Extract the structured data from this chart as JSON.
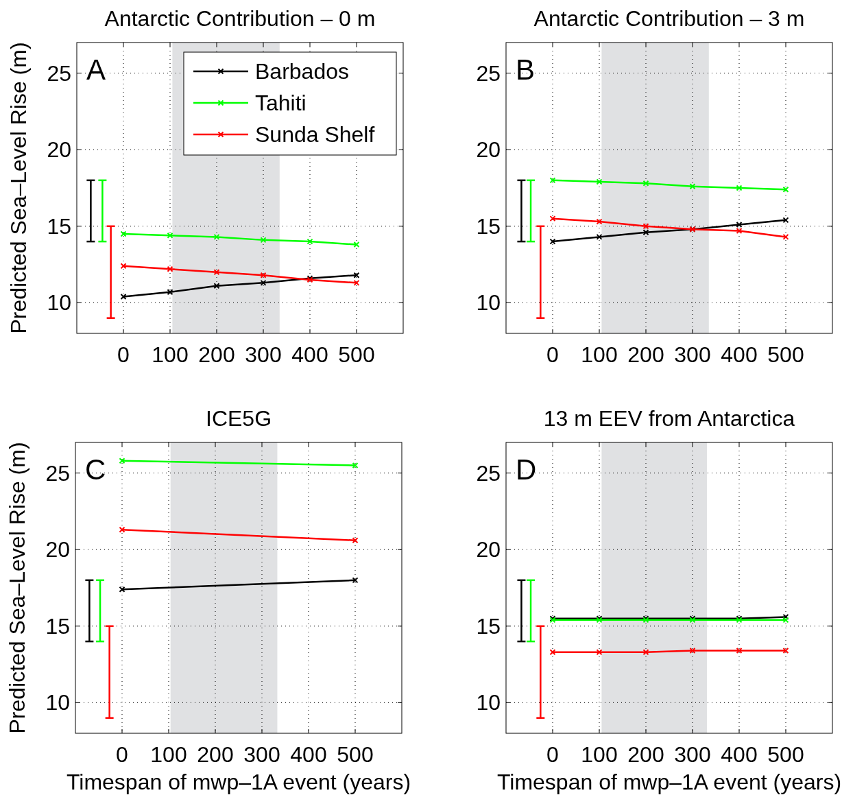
{
  "chart_data": [
    {
      "type": "line",
      "title": "Antarctic Contribution – 0 m",
      "ylabel": "Predicted Sea–Level Rise (m)",
      "annotations": [
        "A"
      ],
      "xlim": [
        -100,
        600
      ],
      "ylim": [
        8,
        27
      ],
      "xticks": [
        0,
        100,
        200,
        300,
        400,
        500
      ],
      "yticks": [
        10,
        15,
        20,
        25
      ],
      "grid": true,
      "legend": "top right",
      "marker": "cross",
      "line_style": "solid",
      "bands": [
        {
          "axis": "x",
          "from": 105,
          "to": 335,
          "color": "#e0e1e3"
        }
      ],
      "series": [
        {
          "name": "Barbados",
          "color": "#000000",
          "x": [
            0,
            100,
            200,
            300,
            400,
            500
          ],
          "values": [
            10.4,
            10.7,
            11.1,
            11.3,
            11.6,
            11.8
          ]
        },
        {
          "name": "Tahiti",
          "color": "#00ff00",
          "x": [
            0,
            100,
            200,
            300,
            400,
            500
          ],
          "values": [
            14.5,
            14.4,
            14.3,
            14.1,
            14.0,
            13.8
          ]
        },
        {
          "name": "Sunda Shelf",
          "color": "#ff0000",
          "x": [
            0,
            100,
            200,
            300,
            400,
            500
          ],
          "values": [
            12.4,
            12.2,
            12.0,
            11.8,
            11.5,
            11.3
          ]
        },
        {
          "marker": "none",
          "color": "#000000",
          "x": [
            -70,
            -70
          ],
          "values": [
            14,
            18
          ]
        },
        {
          "marker": "none",
          "color": "#00ff00",
          "x": [
            -45,
            -45
          ],
          "values": [
            14,
            18
          ]
        },
        {
          "marker": "none",
          "color": "#ff0000",
          "x": [
            -27,
            -27
          ],
          "values": [
            9,
            15
          ]
        }
      ]
    },
    {
      "type": "line",
      "title": "Antarctic Contribution – 3 m",
      "annotations": [
        "B"
      ],
      "xlim": [
        -100,
        600
      ],
      "ylim": [
        8,
        27
      ],
      "xticks": [
        0,
        100,
        200,
        300,
        400,
        500
      ],
      "yticks": [
        10,
        15,
        20,
        25
      ],
      "grid": true,
      "marker": "cross",
      "line_style": "solid",
      "bands": [
        {
          "axis": "x",
          "from": 105,
          "to": 335,
          "color": "#e0e1e3"
        }
      ],
      "series": [
        {
          "color": "#000000",
          "x": [
            0,
            100,
            200,
            300,
            400,
            500
          ],
          "values": [
            14.0,
            14.3,
            14.6,
            14.8,
            15.1,
            15.4
          ]
        },
        {
          "color": "#00ff00",
          "x": [
            0,
            100,
            200,
            300,
            400,
            500
          ],
          "values": [
            18.0,
            17.9,
            17.8,
            17.6,
            17.5,
            17.4
          ]
        },
        {
          "color": "#ff0000",
          "x": [
            0,
            100,
            200,
            300,
            400,
            500
          ],
          "values": [
            15.5,
            15.3,
            15.0,
            14.8,
            14.7,
            14.3
          ]
        },
        {
          "marker": "none",
          "color": "#000000",
          "x": [
            -67,
            -67
          ],
          "values": [
            14,
            18
          ]
        },
        {
          "marker": "none",
          "color": "#00ff00",
          "x": [
            -47,
            -47
          ],
          "values": [
            14,
            18
          ]
        },
        {
          "marker": "none",
          "color": "#ff0000",
          "x": [
            -26,
            -26
          ],
          "values": [
            9,
            15
          ]
        }
      ]
    },
    {
      "type": "line",
      "title": "ICE5G",
      "ylabel": "Predicted Sea–Level Rise (m)",
      "xlabel": "Timespan of mwp–1A event (years)",
      "annotations": [
        "C"
      ],
      "xlim": [
        -100,
        600
      ],
      "ylim": [
        8,
        27
      ],
      "xticks": [
        0,
        100,
        200,
        300,
        400,
        500
      ],
      "yticks": [
        10,
        15,
        20,
        25
      ],
      "grid": true,
      "marker": "cross",
      "line_style": "solid",
      "bands": [
        {
          "axis": "x",
          "from": 104,
          "to": 333,
          "color": "#e0e1e3"
        }
      ],
      "series": [
        {
          "color": "#000000",
          "x": [
            0,
            500
          ],
          "values": [
            17.4,
            18.0
          ]
        },
        {
          "color": "#00ff00",
          "x": [
            0,
            500
          ],
          "values": [
            25.8,
            25.5
          ]
        },
        {
          "color": "#ff0000",
          "x": [
            0,
            500
          ],
          "values": [
            21.3,
            20.6
          ]
        },
        {
          "marker": "none",
          "color": "#000000",
          "x": [
            -70,
            -70
          ],
          "values": [
            14,
            18
          ]
        },
        {
          "marker": "none",
          "color": "#00ff00",
          "x": [
            -47,
            -47
          ],
          "values": [
            14,
            18
          ]
        },
        {
          "marker": "none",
          "color": "#ff0000",
          "x": [
            -27,
            -27
          ],
          "values": [
            9,
            15
          ]
        }
      ]
    },
    {
      "type": "line",
      "title": "13 m EEV from Antarctica",
      "xlabel": "Timespan of mwp–1A event (years)",
      "annotations": [
        "D"
      ],
      "xlim": [
        -100,
        600
      ],
      "ylim": [
        8,
        27
      ],
      "xticks": [
        0,
        100,
        200,
        300,
        400,
        500
      ],
      "yticks": [
        10,
        15,
        20,
        25
      ],
      "grid": true,
      "marker": "cross",
      "line_style": "solid",
      "bands": [
        {
          "axis": "x",
          "from": 105,
          "to": 331,
          "color": "#e0e1e3"
        }
      ],
      "series": [
        {
          "color": "#000000",
          "x": [
            0,
            100,
            200,
            300,
            400,
            500
          ],
          "values": [
            15.5,
            15.5,
            15.5,
            15.5,
            15.5,
            15.6
          ]
        },
        {
          "color": "#00ff00",
          "x": [
            0,
            100,
            200,
            300,
            400,
            500
          ],
          "values": [
            15.4,
            15.4,
            15.4,
            15.4,
            15.4,
            15.4
          ]
        },
        {
          "color": "#ff0000",
          "x": [
            0,
            100,
            200,
            300,
            400,
            500
          ],
          "values": [
            13.3,
            13.3,
            13.3,
            13.4,
            13.4,
            13.4
          ]
        },
        {
          "marker": "none",
          "color": "#000000",
          "x": [
            -67,
            -67
          ],
          "values": [
            14,
            18
          ]
        },
        {
          "marker": "none",
          "color": "#00ff00",
          "x": [
            -47,
            -47
          ],
          "values": [
            14,
            18
          ]
        },
        {
          "marker": "none",
          "color": "#ff0000",
          "x": [
            -26,
            -26
          ],
          "values": [
            9,
            15
          ]
        }
      ]
    }
  ]
}
